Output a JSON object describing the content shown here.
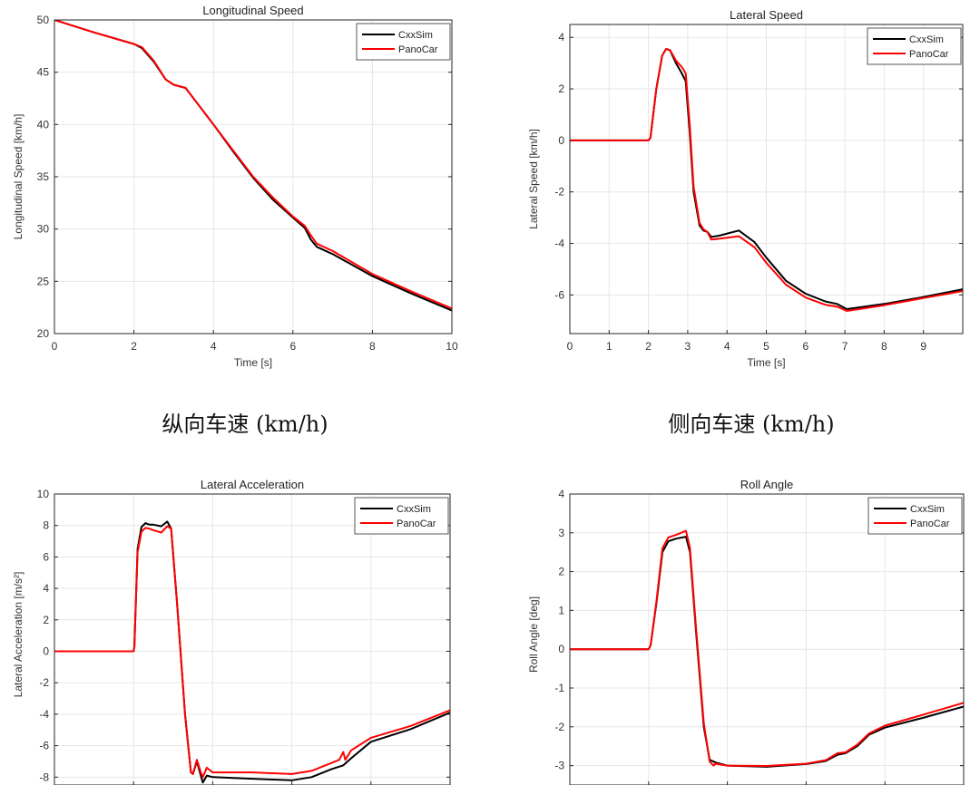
{
  "captions": [
    "纵向车速 (km/h)",
    "侧向车速 (km/h)"
  ],
  "colors": {
    "CxxSim": "#000000",
    "PanoCar": "#ff0000",
    "grid": "#e6e6e6",
    "axis": "#262626"
  },
  "chart_data": [
    {
      "type": "line",
      "title": "Longitudinal Speed",
      "xlabel": "Time [s]",
      "ylabel": "Longitudinal Speed [km/h]",
      "xlim": [
        0,
        10
      ],
      "ylim": [
        20,
        50
      ],
      "xticks": [
        0,
        2,
        4,
        6,
        8,
        10
      ],
      "xtick_labels_visible": true,
      "yticks": [
        20,
        25,
        30,
        35,
        40,
        45,
        50
      ],
      "grid": true,
      "legend": "top-right",
      "series": [
        {
          "name": "CxxSim",
          "x": [
            0,
            1,
            2,
            2.2,
            2.5,
            2.8,
            3,
            3.3,
            3.6,
            4,
            4.5,
            5,
            5.5,
            6,
            6.3,
            6.45,
            6.6,
            7,
            8,
            9,
            10
          ],
          "y": [
            50,
            48.8,
            47.7,
            47.3,
            46,
            44.3,
            43.8,
            43.5,
            42,
            40,
            37.4,
            34.9,
            32.8,
            31.1,
            30.1,
            29.0,
            28.3,
            27.6,
            25.5,
            23.8,
            22.2
          ]
        },
        {
          "name": "PanoCar",
          "x": [
            0,
            1,
            2,
            2.2,
            2.5,
            2.8,
            3,
            3.3,
            3.6,
            4,
            4.5,
            5,
            5.5,
            6,
            6.3,
            6.45,
            6.6,
            7,
            8,
            9,
            10
          ],
          "y": [
            50,
            48.8,
            47.7,
            47.4,
            46.1,
            44.3,
            43.8,
            43.5,
            42,
            40,
            37.5,
            35,
            33,
            31.2,
            30.3,
            29.4,
            28.6,
            27.9,
            25.7,
            24,
            22.4
          ]
        }
      ]
    },
    {
      "type": "line",
      "title": "Lateral Speed",
      "xlabel": "Time [s]",
      "ylabel": "Lateral Speed [km/h]",
      "xlim": [
        0,
        10
      ],
      "ylim": [
        -7.5,
        4.5
      ],
      "xticks": [
        0,
        1,
        2,
        3,
        4,
        5,
        6,
        7,
        8,
        9
      ],
      "xtick_labels_visible": true,
      "yticks": [
        -6,
        -4,
        -2,
        0,
        2,
        4
      ],
      "grid": true,
      "legend": "top-right",
      "series": [
        {
          "name": "CxxSim",
          "x": [
            0,
            2,
            2.05,
            2.2,
            2.35,
            2.45,
            2.55,
            2.7,
            2.85,
            2.95,
            3.05,
            3.15,
            3.3,
            3.4,
            3.5,
            3.6,
            3.8,
            4.3,
            4.7,
            5,
            5.5,
            6,
            6.5,
            6.8,
            7.05,
            8,
            9,
            10
          ],
          "y": [
            0,
            0,
            0.1,
            2,
            3.3,
            3.55,
            3.5,
            3.0,
            2.6,
            2.3,
            0.3,
            -2,
            -3.3,
            -3.5,
            -3.55,
            -3.75,
            -3.7,
            -3.5,
            -3.95,
            -4.55,
            -5.45,
            -5.95,
            -6.25,
            -6.35,
            -6.55,
            -6.35,
            -6.08,
            -5.78
          ]
        },
        {
          "name": "PanoCar",
          "x": [
            0,
            2,
            2.05,
            2.2,
            2.35,
            2.45,
            2.55,
            2.7,
            2.85,
            2.95,
            3.05,
            3.15,
            3.3,
            3.4,
            3.5,
            3.6,
            3.8,
            4.3,
            4.7,
            5,
            5.5,
            6,
            6.5,
            6.8,
            7.05,
            8,
            9,
            10
          ],
          "y": [
            0,
            0,
            0.1,
            2,
            3.3,
            3.55,
            3.5,
            3.1,
            2.85,
            2.6,
            0.6,
            -1.8,
            -3.2,
            -3.45,
            -3.55,
            -3.85,
            -3.82,
            -3.72,
            -4.15,
            -4.75,
            -5.6,
            -6.1,
            -6.38,
            -6.45,
            -6.62,
            -6.4,
            -6.12,
            -5.85
          ]
        }
      ]
    },
    {
      "type": "line",
      "title": "Lateral Acceleration",
      "xlabel": "",
      "ylabel": "Lateral Acceleration [m/s²]",
      "xlim": [
        0,
        10
      ],
      "ylim": [
        -8.5,
        10
      ],
      "xticks": [
        0,
        2,
        4,
        6,
        8,
        10
      ],
      "xtick_labels_visible": false,
      "yticks": [
        -8,
        -6,
        -4,
        -2,
        0,
        2,
        4,
        6,
        8,
        10
      ],
      "grid": true,
      "legend": "top-right",
      "series": [
        {
          "name": "CxxSim",
          "x": [
            0,
            2,
            2.02,
            2.1,
            2.2,
            2.3,
            2.4,
            2.5,
            2.7,
            2.85,
            2.95,
            3.1,
            3.3,
            3.45,
            3.5,
            3.6,
            3.7,
            3.75,
            3.85,
            4,
            5,
            6,
            6.5,
            7,
            7.3,
            7.5,
            8,
            9,
            10
          ],
          "y": [
            0,
            0,
            0.3,
            6.5,
            7.9,
            8.15,
            8.05,
            8.05,
            7.95,
            8.25,
            7.8,
            3,
            -4,
            -7.7,
            -7.8,
            -7.0,
            -7.9,
            -8.35,
            -7.9,
            -8.0,
            -8.1,
            -8.2,
            -8.0,
            -7.5,
            -7.25,
            -6.8,
            -5.75,
            -4.95,
            -3.9
          ]
        },
        {
          "name": "PanoCar",
          "x": [
            0,
            2,
            2.02,
            2.1,
            2.2,
            2.3,
            2.4,
            2.5,
            2.7,
            2.85,
            2.95,
            3.1,
            3.3,
            3.45,
            3.5,
            3.6,
            3.7,
            3.75,
            3.85,
            4,
            5,
            6,
            6.5,
            7,
            7.2,
            7.3,
            7.35,
            7.5,
            8,
            9,
            10
          ],
          "y": [
            0,
            0,
            0.3,
            6.3,
            7.6,
            7.85,
            7.8,
            7.7,
            7.55,
            7.95,
            7.8,
            3,
            -4,
            -7.7,
            -7.8,
            -6.9,
            -7.7,
            -8.0,
            -7.4,
            -7.7,
            -7.7,
            -7.8,
            -7.6,
            -7.1,
            -6.9,
            -6.4,
            -6.9,
            -6.3,
            -5.5,
            -4.75,
            -3.75
          ]
        }
      ]
    },
    {
      "type": "line",
      "title": "Roll Angle",
      "xlabel": "",
      "ylabel": "Roll Angle [deg]",
      "xlim": [
        0,
        10
      ],
      "ylim": [
        -3.5,
        4
      ],
      "xticks": [
        0,
        2,
        4,
        6,
        8,
        10
      ],
      "xtick_labels_visible": false,
      "yticks": [
        -3,
        -2,
        -1,
        0,
        1,
        2,
        3,
        4
      ],
      "grid": true,
      "legend": "top-right",
      "series": [
        {
          "name": "CxxSim",
          "x": [
            0,
            2,
            2.05,
            2.2,
            2.35,
            2.5,
            2.7,
            2.95,
            3.05,
            3.2,
            3.4,
            3.55,
            3.7,
            4,
            5,
            6,
            6.5,
            6.8,
            7,
            7.3,
            7.6,
            8,
            9,
            10
          ],
          "y": [
            0,
            0,
            0.1,
            1.2,
            2.5,
            2.78,
            2.85,
            2.9,
            2.5,
            0.5,
            -2,
            -2.85,
            -2.92,
            -3.0,
            -3.03,
            -2.96,
            -2.88,
            -2.72,
            -2.68,
            -2.5,
            -2.2,
            -2.02,
            -1.76,
            -1.48
          ]
        },
        {
          "name": "PanoCar",
          "x": [
            0,
            2,
            2.05,
            2.2,
            2.35,
            2.5,
            2.7,
            2.95,
            3.05,
            3.2,
            3.4,
            3.55,
            3.65,
            3.7,
            4,
            5,
            6,
            6.5,
            6.8,
            7,
            7.3,
            7.6,
            8,
            9,
            10
          ],
          "y": [
            0,
            0,
            0.1,
            1.25,
            2.6,
            2.88,
            2.95,
            3.05,
            2.6,
            0.6,
            -1.9,
            -2.9,
            -3.0,
            -2.95,
            -3.0,
            -3.01,
            -2.95,
            -2.86,
            -2.68,
            -2.66,
            -2.46,
            -2.17,
            -1.97,
            -1.68,
            -1.38
          ]
        }
      ]
    }
  ]
}
